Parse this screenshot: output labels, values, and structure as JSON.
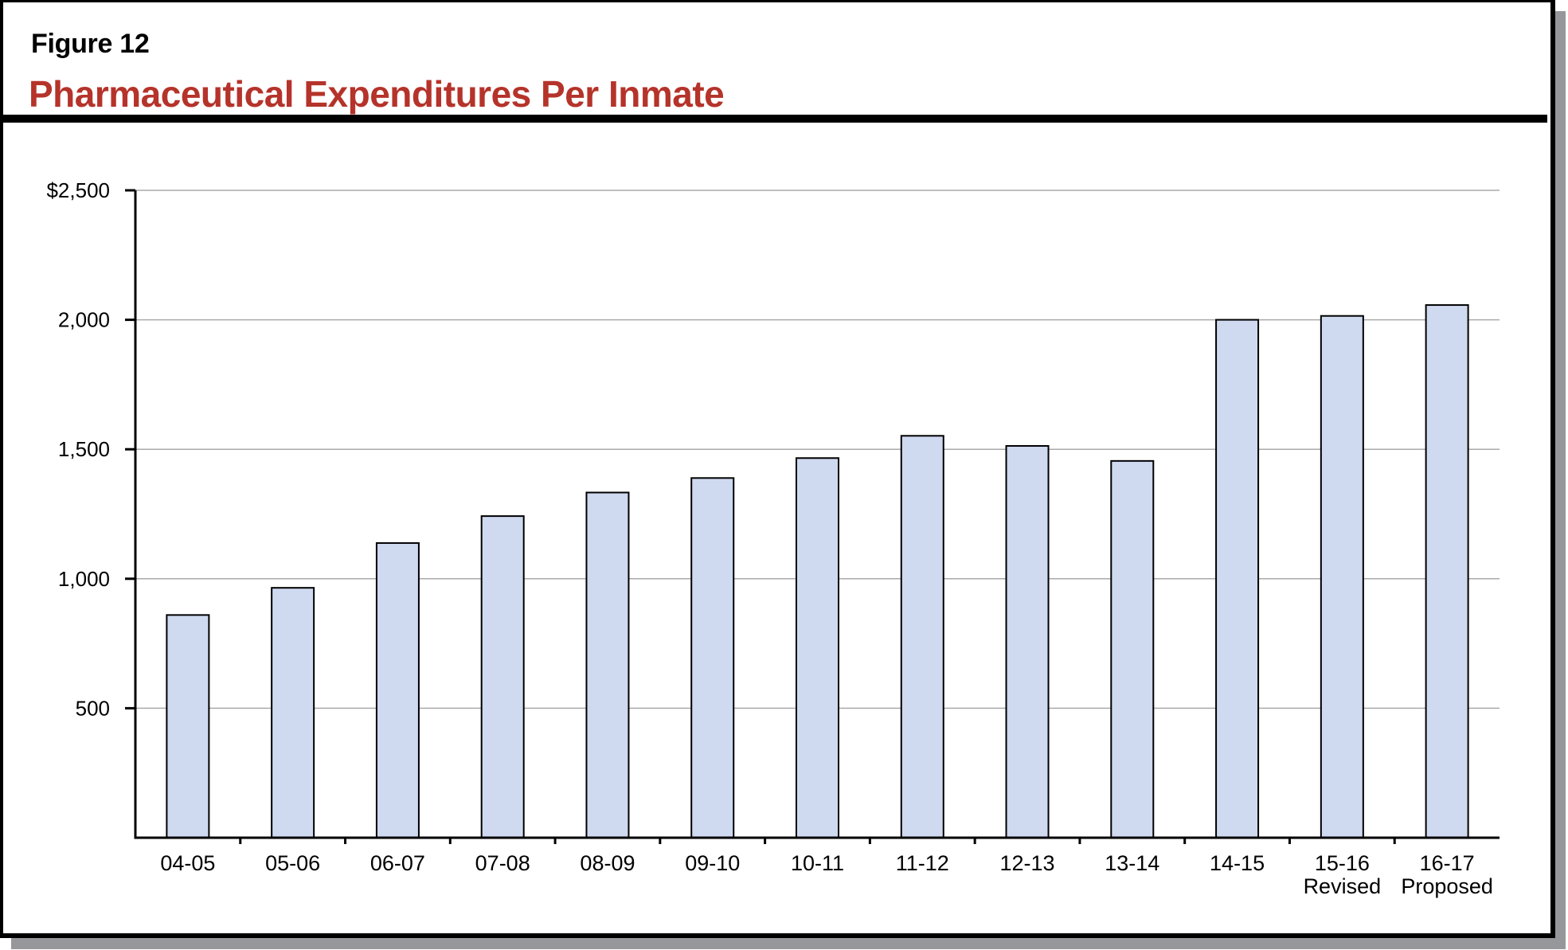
{
  "figure": {
    "label": "Figure 12",
    "title": "Pharmaceutical Expenditures Per Inmate"
  },
  "colors": {
    "title": "#b5332a",
    "bar_fill": "#cfd9f0",
    "bar_stroke": "#000000",
    "gridline": "#aaaaaa",
    "frame_shadow": "#96979b"
  },
  "chart_data": {
    "type": "bar",
    "title": "Pharmaceutical Expenditures Per Inmate",
    "xlabel": "",
    "ylabel": "",
    "categories": [
      "04-05",
      "05-06",
      "06-07",
      "07-08",
      "08-09",
      "09-10",
      "10-11",
      "11-12",
      "12-13",
      "13-14",
      "14-15",
      "15-16 Revised",
      "16-17 Proposed"
    ],
    "category_lines": [
      [
        "04-05"
      ],
      [
        "05-06"
      ],
      [
        "06-07"
      ],
      [
        "07-08"
      ],
      [
        "08-09"
      ],
      [
        "09-10"
      ],
      [
        "10-11"
      ],
      [
        "11-12"
      ],
      [
        "12-13"
      ],
      [
        "13-14"
      ],
      [
        "14-15"
      ],
      [
        "15-16",
        "Revised"
      ],
      [
        "16-17",
        "Proposed"
      ]
    ],
    "values": [
      860,
      965,
      1138,
      1242,
      1333,
      1389,
      1466,
      1552,
      1513,
      1455,
      2000,
      2015,
      2057
    ],
    "ylim": [
      0,
      2500
    ],
    "yticks": [
      500,
      1000,
      1500,
      2000,
      2500
    ],
    "ytick_labels": [
      "500",
      "1,000",
      "1,500",
      "2,000",
      "$2,500"
    ],
    "grid": true,
    "legend": null
  }
}
